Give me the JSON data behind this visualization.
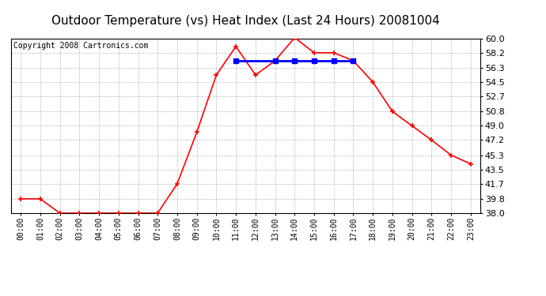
{
  "title": "Outdoor Temperature (vs) Heat Index (Last 24 Hours) 20081004",
  "copyright": "Copyright 2008 Cartronics.com",
  "hours": [
    "00:00",
    "01:00",
    "02:00",
    "03:00",
    "04:00",
    "05:00",
    "06:00",
    "07:00",
    "08:00",
    "09:00",
    "10:00",
    "11:00",
    "12:00",
    "13:00",
    "14:00",
    "15:00",
    "16:00",
    "17:00",
    "18:00",
    "19:00",
    "20:00",
    "21:00",
    "22:00",
    "23:00"
  ],
  "temp": [
    39.8,
    39.8,
    38.0,
    38.0,
    38.0,
    38.0,
    38.0,
    38.0,
    41.7,
    48.2,
    55.4,
    59.0,
    55.4,
    57.2,
    60.1,
    58.2,
    58.2,
    57.2,
    54.5,
    50.8,
    49.0,
    47.2,
    45.3,
    44.2
  ],
  "heat_index": [
    null,
    null,
    null,
    null,
    null,
    null,
    null,
    null,
    null,
    null,
    null,
    57.2,
    null,
    57.2,
    57.2,
    57.2,
    57.2,
    57.2,
    null,
    null,
    null,
    null,
    null,
    null
  ],
  "ylim": [
    38.0,
    60.0
  ],
  "yticks": [
    38.0,
    39.8,
    41.7,
    43.5,
    45.3,
    47.2,
    49.0,
    50.8,
    52.7,
    54.5,
    56.3,
    58.2,
    60.0
  ],
  "temp_color": "#FF0000",
  "heat_color": "#0000FF",
  "background_color": "#FFFFFF",
  "grid_color": "#AAAAAA",
  "title_fontsize": 11,
  "copyright_fontsize": 7
}
